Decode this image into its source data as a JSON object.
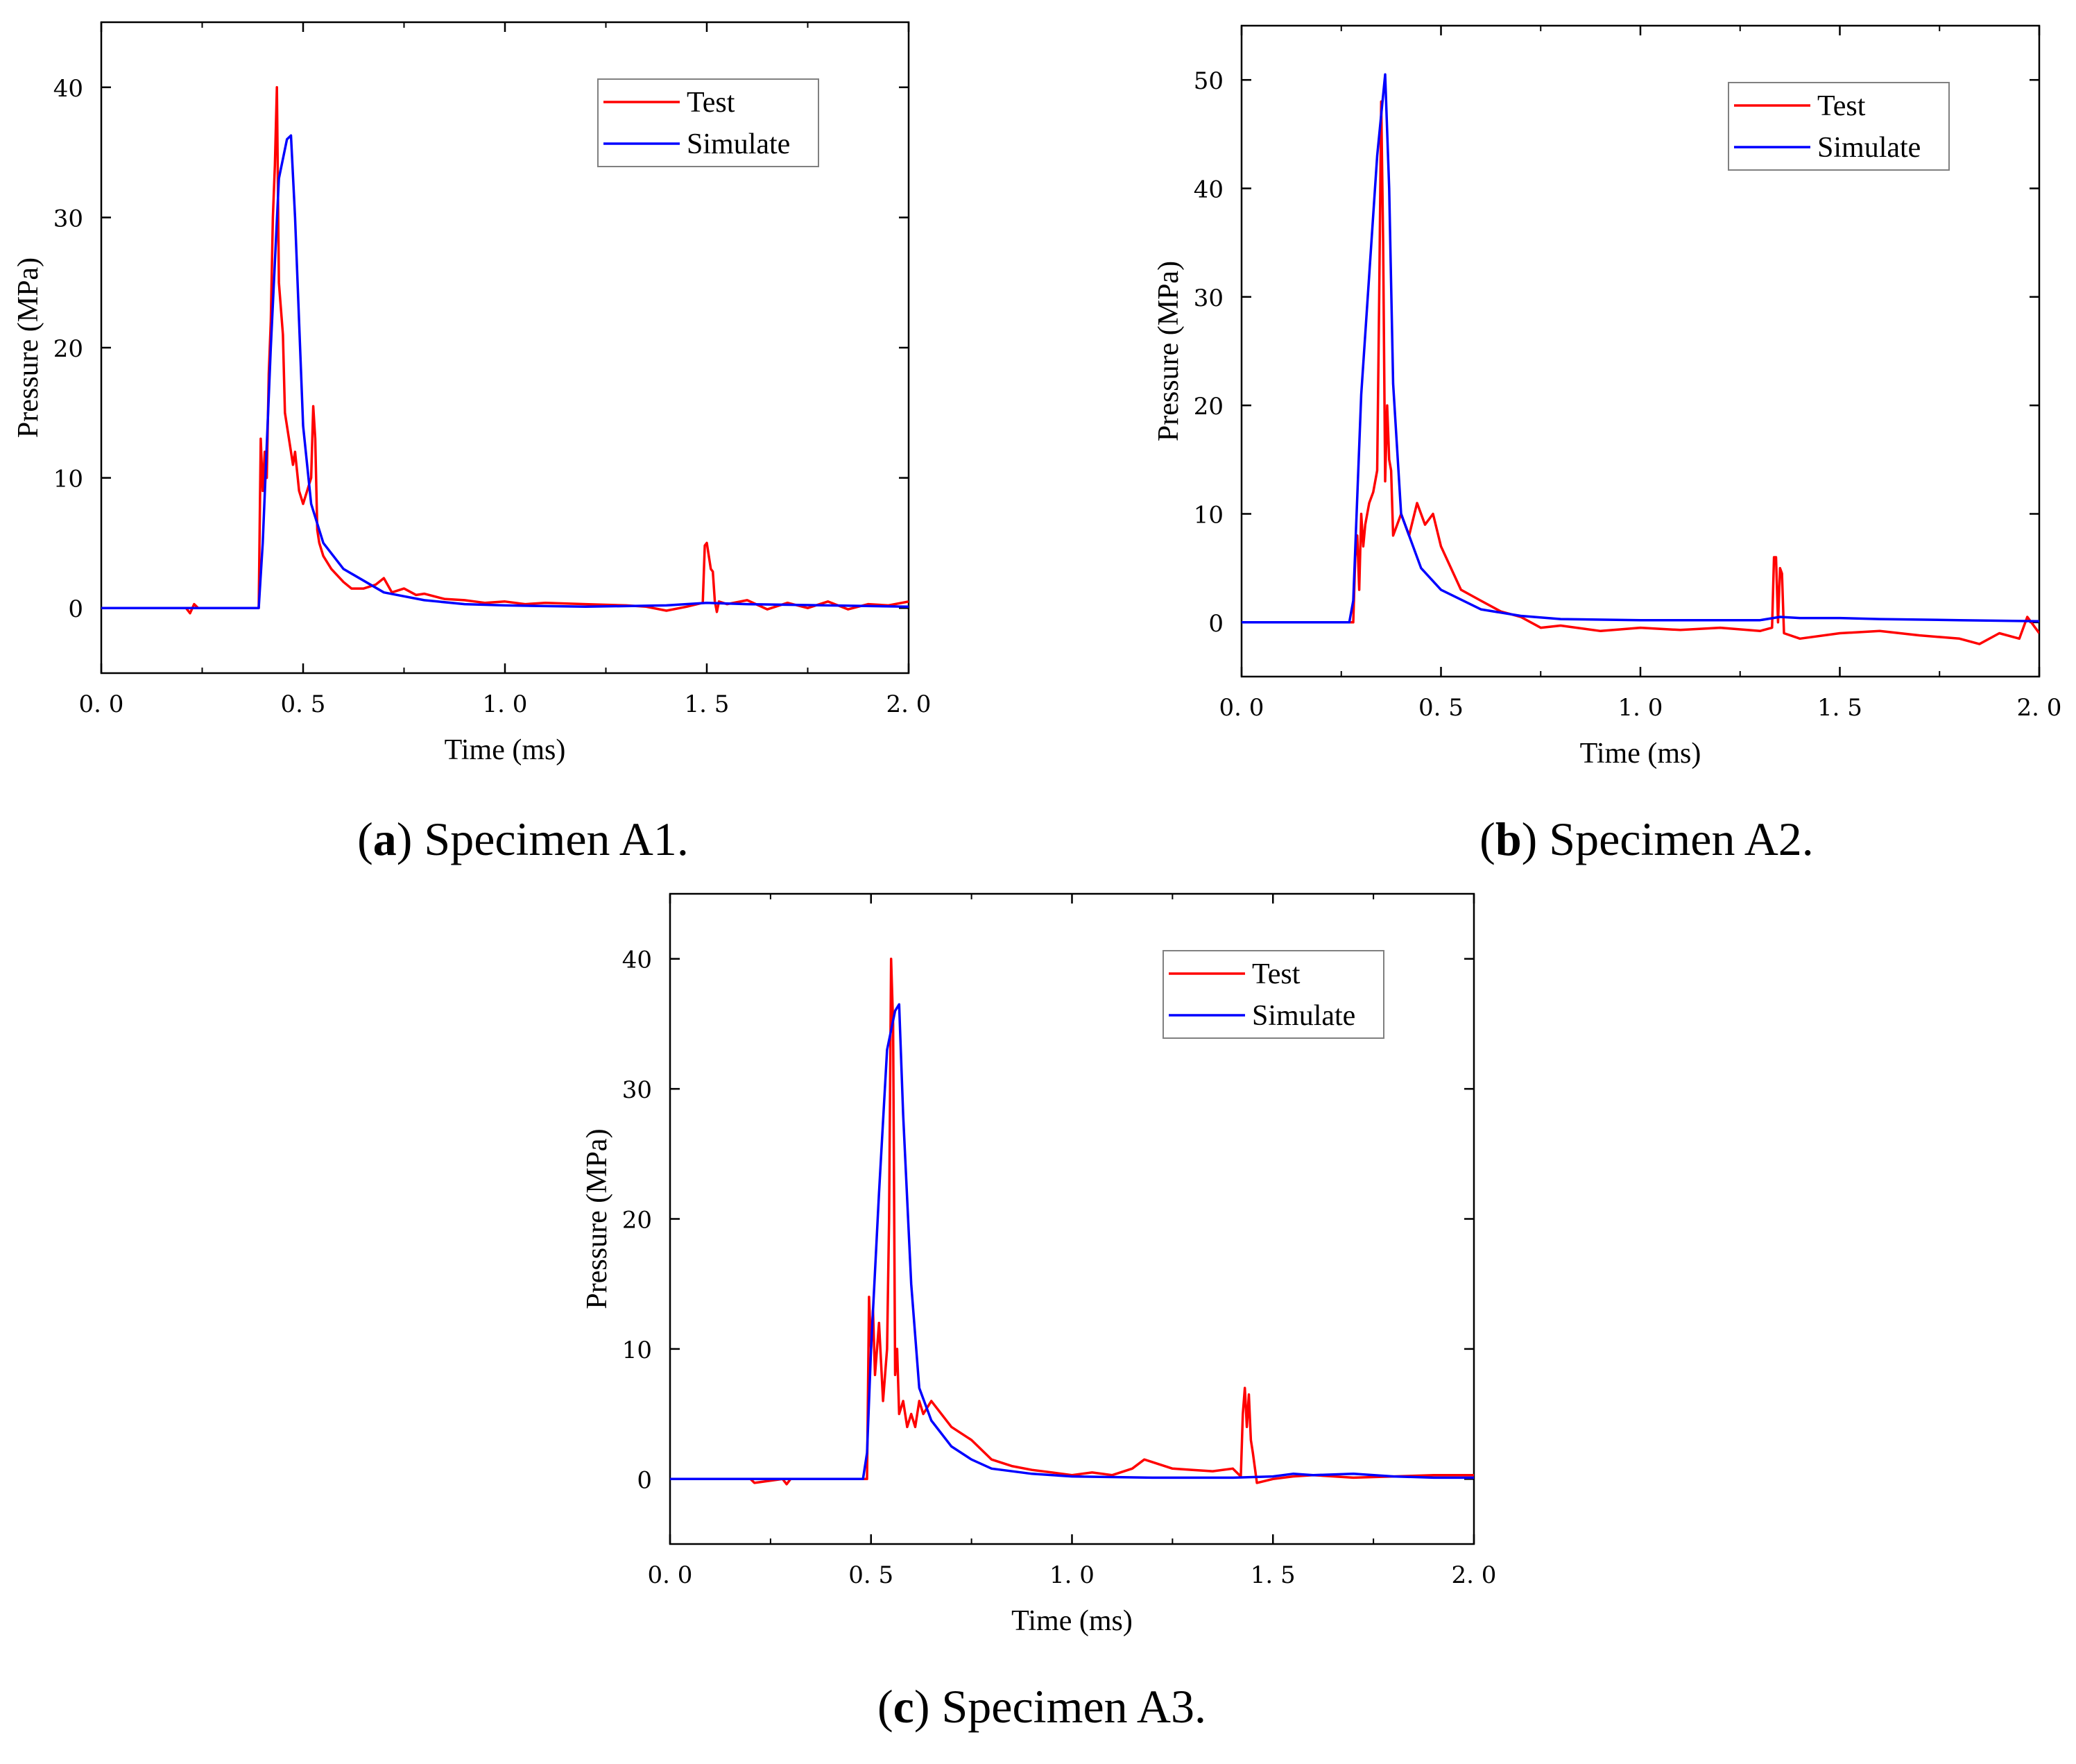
{
  "colors": {
    "test": "#ff0000",
    "simulate": "#0000ff",
    "axis": "#000000",
    "legend_border": "#808080"
  },
  "chart_data": [
    {
      "type": "line",
      "caption": {
        "label": "a",
        "text": ") Specimen A1.",
        "open": "("
      },
      "xlabel": "Time (ms)",
      "ylabel": "Pressure (MPa)",
      "xlim": [
        0,
        2
      ],
      "ylim": [
        -5,
        45
      ],
      "xticks": [
        0,
        0.5,
        1,
        1.5,
        2
      ],
      "xtick_labels": [
        "0. 0",
        "0. 5",
        "1. 0",
        "1. 5",
        "2. 0"
      ],
      "yticks": [
        0,
        10,
        20,
        30,
        40
      ],
      "ytick_labels": [
        "0",
        "10",
        "20",
        "30",
        "40"
      ],
      "legend": {
        "position": "top-right",
        "entries": [
          "Test",
          "Simulate"
        ]
      },
      "series": [
        {
          "name": "Test",
          "color": "#ff0000",
          "x": [
            0,
            0.21,
            0.22,
            0.23,
            0.24,
            0.39,
            0.395,
            0.4,
            0.405,
            0.41,
            0.415,
            0.42,
            0.425,
            0.43,
            0.435,
            0.44,
            0.445,
            0.45,
            0.455,
            0.46,
            0.465,
            0.47,
            0.475,
            0.48,
            0.49,
            0.5,
            0.51,
            0.52,
            0.525,
            0.53,
            0.535,
            0.54,
            0.55,
            0.57,
            0.6,
            0.62,
            0.65,
            0.68,
            0.7,
            0.72,
            0.75,
            0.78,
            0.8,
            0.85,
            0.9,
            0.95,
            1.0,
            1.05,
            1.1,
            1.2,
            1.3,
            1.35,
            1.4,
            1.45,
            1.49,
            1.495,
            1.5,
            1.51,
            1.515,
            1.52,
            1.525,
            1.53,
            1.55,
            1.6,
            1.65,
            1.7,
            1.75,
            1.8,
            1.85,
            1.9,
            1.95,
            2.0
          ],
          "y": [
            0,
            0,
            -0.4,
            0.3,
            0,
            0,
            13,
            9,
            12,
            10,
            18,
            22,
            30,
            34,
            40,
            25,
            23,
            21,
            15,
            14,
            13,
            12,
            11,
            12,
            9,
            8,
            9,
            10,
            15.5,
            13,
            6,
            5,
            4,
            3,
            2,
            1.5,
            1.5,
            1.8,
            2.3,
            1.2,
            1.5,
            1.0,
            1.1,
            0.7,
            0.6,
            0.4,
            0.5,
            0.3,
            0.4,
            0.3,
            0.2,
            0.1,
            -0.2,
            0.1,
            0.4,
            4.8,
            5.0,
            3,
            2.8,
            0.5,
            -0.3,
            0.5,
            0.3,
            0.6,
            -0.1,
            0.4,
            0.0,
            0.5,
            -0.1,
            0.3,
            0.2,
            0.5
          ]
        },
        {
          "name": "Simulate",
          "color": "#0000ff",
          "x": [
            0,
            0.39,
            0.4,
            0.42,
            0.44,
            0.46,
            0.47,
            0.48,
            0.5,
            0.52,
            0.55,
            0.6,
            0.7,
            0.8,
            0.9,
            1.0,
            1.2,
            1.4,
            1.5,
            1.6,
            1.8,
            2.0
          ],
          "y": [
            0,
            0,
            5,
            20,
            33,
            36,
            36.3,
            30,
            14,
            8,
            5,
            3,
            1.2,
            0.6,
            0.3,
            0.2,
            0.1,
            0.2,
            0.4,
            0.3,
            0.2,
            0.1
          ]
        }
      ]
    },
    {
      "type": "line",
      "caption": {
        "label": "b",
        "text": ") Specimen A2.",
        "open": "("
      },
      "xlabel": "Time (ms)",
      "ylabel": "Pressure (MPa)",
      "xlim": [
        0,
        2
      ],
      "ylim": [
        -5,
        55
      ],
      "xticks": [
        0,
        0.5,
        1,
        1.5,
        2
      ],
      "xtick_labels": [
        "0. 0",
        "0. 5",
        "1. 0",
        "1. 5",
        "2. 0"
      ],
      "yticks": [
        0,
        10,
        20,
        30,
        40,
        50
      ],
      "ytick_labels": [
        "0",
        "10",
        "20",
        "30",
        "40",
        "50"
      ],
      "legend": {
        "position": "top-right",
        "entries": [
          "Test",
          "Simulate"
        ]
      },
      "series": [
        {
          "name": "Test",
          "color": "#ff0000",
          "x": [
            0,
            0.27,
            0.28,
            0.285,
            0.29,
            0.295,
            0.3,
            0.305,
            0.31,
            0.32,
            0.33,
            0.34,
            0.345,
            0.35,
            0.355,
            0.36,
            0.365,
            0.37,
            0.375,
            0.38,
            0.39,
            0.4,
            0.42,
            0.44,
            0.46,
            0.48,
            0.5,
            0.55,
            0.6,
            0.65,
            0.7,
            0.75,
            0.8,
            0.9,
            1.0,
            1.1,
            1.2,
            1.3,
            1.33,
            1.335,
            1.34,
            1.345,
            1.35,
            1.355,
            1.36,
            1.4,
            1.5,
            1.6,
            1.7,
            1.8,
            1.85,
            1.9,
            1.95,
            1.97,
            2.0
          ],
          "y": [
            0,
            0,
            0,
            6,
            8,
            3,
            10,
            7,
            9,
            11,
            12,
            14,
            30,
            48,
            35,
            13,
            20,
            15,
            14,
            8,
            9,
            10,
            8,
            11,
            9,
            10,
            7,
            3,
            2,
            1,
            0.5,
            -0.5,
            -0.3,
            -0.8,
            -0.5,
            -0.7,
            -0.5,
            -0.8,
            -0.5,
            6,
            6,
            0,
            5,
            4.5,
            -1,
            -1.5,
            -1,
            -0.8,
            -1.2,
            -1.5,
            -2,
            -1.0,
            -1.5,
            0.5,
            -1
          ]
        },
        {
          "name": "Simulate",
          "color": "#0000ff",
          "x": [
            0,
            0.27,
            0.28,
            0.3,
            0.32,
            0.34,
            0.36,
            0.37,
            0.38,
            0.4,
            0.45,
            0.5,
            0.6,
            0.7,
            0.8,
            1.0,
            1.2,
            1.3,
            1.35,
            1.4,
            1.5,
            1.6,
            1.8,
            2.0
          ],
          "y": [
            0,
            0,
            2,
            21,
            32,
            43,
            50.5,
            40,
            22,
            10,
            5,
            3,
            1.2,
            0.6,
            0.3,
            0.2,
            0.2,
            0.2,
            0.5,
            0.4,
            0.4,
            0.3,
            0.2,
            0.1
          ]
        }
      ]
    },
    {
      "type": "line",
      "caption": {
        "label": "c",
        "text": ") Specimen A3.",
        "open": "("
      },
      "xlabel": "Time (ms)",
      "ylabel": "Pressure (MPa)",
      "xlim": [
        0,
        2
      ],
      "ylim": [
        -5,
        45
      ],
      "xticks": [
        0,
        0.5,
        1,
        1.5,
        2
      ],
      "xtick_labels": [
        "0. 0",
        "0. 5",
        "1. 0",
        "1. 5",
        "2. 0"
      ],
      "yticks": [
        0,
        10,
        20,
        30,
        40
      ],
      "ytick_labels": [
        "0",
        "10",
        "20",
        "30",
        "40"
      ],
      "legend": {
        "position": "top-right",
        "entries": [
          "Test",
          "Simulate"
        ]
      },
      "series": [
        {
          "name": "Test",
          "color": "#ff0000",
          "x": [
            0,
            0.2,
            0.21,
            0.28,
            0.29,
            0.3,
            0.48,
            0.49,
            0.495,
            0.5,
            0.505,
            0.51,
            0.52,
            0.53,
            0.54,
            0.545,
            0.55,
            0.555,
            0.56,
            0.565,
            0.57,
            0.58,
            0.59,
            0.6,
            0.61,
            0.62,
            0.63,
            0.65,
            0.7,
            0.75,
            0.8,
            0.85,
            0.9,
            0.95,
            1.0,
            1.05,
            1.1,
            1.15,
            1.18,
            1.2,
            1.25,
            1.3,
            1.35,
            1.4,
            1.42,
            1.425,
            1.43,
            1.435,
            1.44,
            1.445,
            1.45,
            1.46,
            1.5,
            1.55,
            1.6,
            1.7,
            1.8,
            1.9,
            2.0
          ],
          "y": [
            0,
            0,
            -0.3,
            0,
            -0.4,
            0,
            0,
            0,
            14,
            10,
            13,
            8,
            12,
            6,
            10,
            20,
            40,
            35,
            8,
            10,
            5,
            6,
            4,
            5,
            4,
            6,
            5,
            6,
            4,
            3,
            1.5,
            1,
            0.7,
            0.5,
            0.3,
            0.5,
            0.3,
            0.8,
            1.5,
            1.3,
            0.8,
            0.7,
            0.6,
            0.8,
            0.2,
            5,
            7,
            4,
            6.5,
            3,
            2,
            -0.3,
            0,
            0.2,
            0.3,
            0.1,
            0.2,
            0.3,
            0.3
          ]
        },
        {
          "name": "Simulate",
          "color": "#0000ff",
          "x": [
            0,
            0.48,
            0.49,
            0.5,
            0.52,
            0.54,
            0.56,
            0.57,
            0.58,
            0.6,
            0.62,
            0.65,
            0.7,
            0.75,
            0.8,
            0.9,
            1.0,
            1.2,
            1.4,
            1.5,
            1.55,
            1.6,
            1.7,
            1.8,
            1.9,
            2.0
          ],
          "y": [
            0,
            0,
            2,
            10,
            22,
            33,
            36,
            36.5,
            28,
            15,
            7,
            4.5,
            2.5,
            1.5,
            0.8,
            0.4,
            0.2,
            0.1,
            0.1,
            0.2,
            0.4,
            0.3,
            0.4,
            0.2,
            0.1,
            0.1
          ]
        }
      ]
    }
  ]
}
